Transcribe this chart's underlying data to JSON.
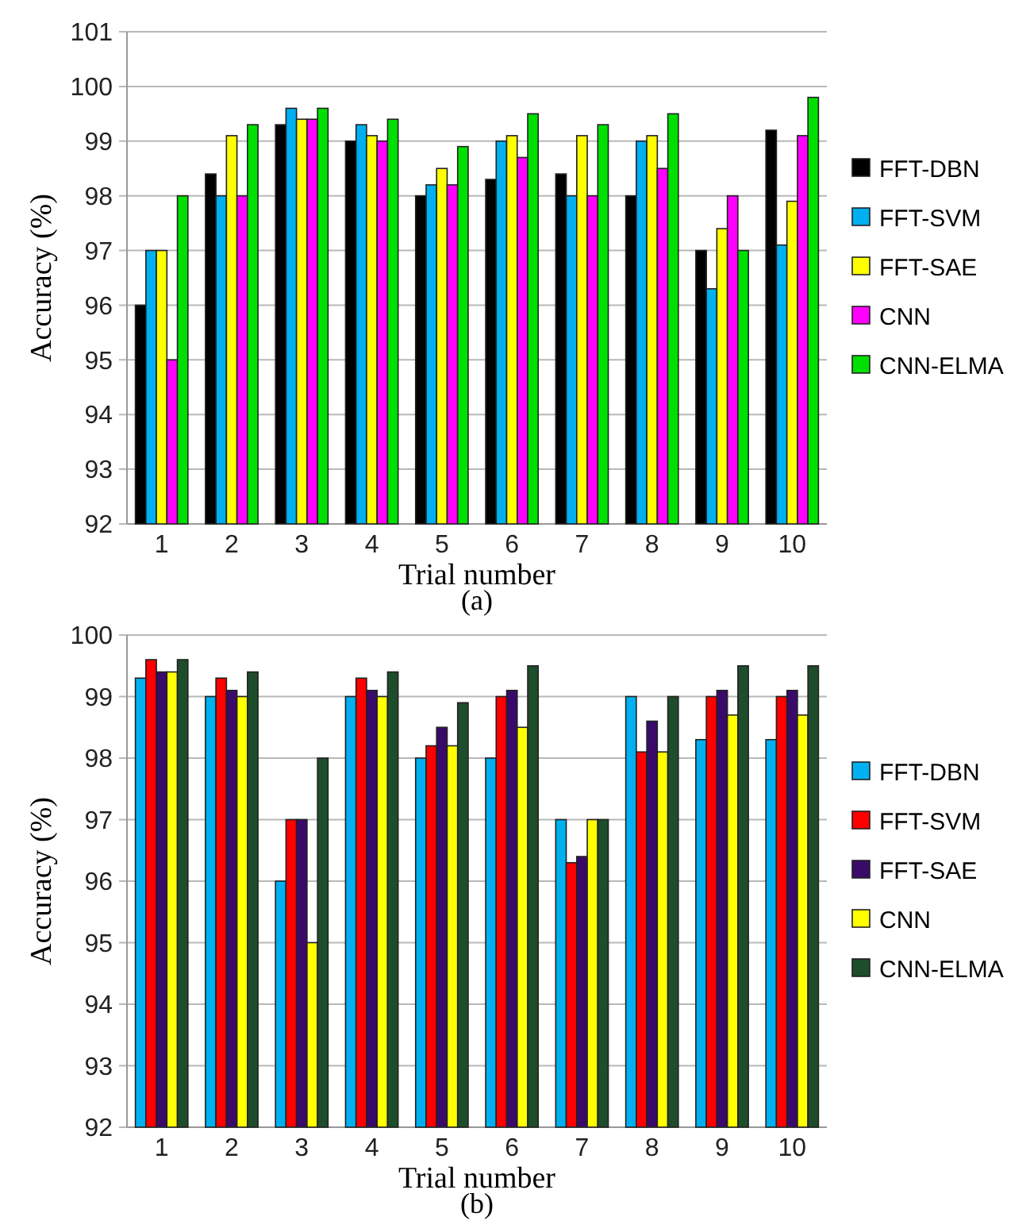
{
  "chart_data": [
    {
      "type": "bar",
      "xlabel": "Trial number",
      "ylabel": "Accuracy (%)",
      "categories": [
        "1",
        "2",
        "3",
        "4",
        "5",
        "6",
        "7",
        "8",
        "9",
        "10"
      ],
      "ylim": [
        92,
        101
      ],
      "yticks": [
        92,
        93,
        94,
        95,
        96,
        97,
        98,
        99,
        100,
        101
      ],
      "grid": "y",
      "legend": "right",
      "annotations": [
        "(a)"
      ],
      "series": [
        {
          "name": "FFT-DBN",
          "color": "#000000",
          "values": [
            96,
            98.4,
            99.3,
            99.0,
            98.0,
            98.3,
            98.4,
            98.0,
            97.0,
            99.2
          ]
        },
        {
          "name": "FFT-SVM",
          "color": "#00b0f0",
          "values": [
            97,
            98.0,
            99.6,
            99.3,
            98.2,
            99.0,
            98.0,
            99.0,
            96.3,
            97.1
          ]
        },
        {
          "name": "FFT-SAE",
          "color": "#ffff00",
          "values": [
            97,
            99.1,
            99.4,
            99.1,
            98.5,
            99.1,
            99.1,
            99.1,
            97.4,
            97.9
          ]
        },
        {
          "name": "CNN",
          "color": "#ff00ff",
          "values": [
            95,
            98.0,
            99.4,
            99.0,
            98.2,
            98.7,
            98.0,
            98.5,
            98.0,
            99.1
          ]
        },
        {
          "name": "CNN-ELMA",
          "color": "#00e000",
          "values": [
            98,
            99.3,
            99.6,
            99.4,
            98.9,
            99.5,
            99.3,
            99.5,
            97.0,
            99.8
          ]
        }
      ]
    },
    {
      "type": "bar",
      "xlabel": "Trial number",
      "ylabel": "Accuracy (%)",
      "categories": [
        "1",
        "2",
        "3",
        "4",
        "5",
        "6",
        "7",
        "8",
        "9",
        "10"
      ],
      "ylim": [
        92,
        100
      ],
      "yticks": [
        92,
        93,
        94,
        95,
        96,
        97,
        98,
        99,
        100
      ],
      "grid": "y",
      "legend": "right",
      "annotations": [
        "(b)"
      ],
      "series": [
        {
          "name": "FFT-DBN",
          "color": "#00b0f0",
          "values": [
            99.3,
            99.0,
            96.0,
            99.0,
            98.0,
            98.0,
            97.0,
            99.0,
            98.3,
            98.3
          ]
        },
        {
          "name": "FFT-SVM",
          "color": "#ff0000",
          "values": [
            99.6,
            99.3,
            97.0,
            99.3,
            98.2,
            99.0,
            96.3,
            98.1,
            99.0,
            99.0
          ]
        },
        {
          "name": "FFT-SAE",
          "color": "#3a0a6a",
          "values": [
            99.4,
            99.1,
            97.0,
            99.1,
            98.5,
            99.1,
            96.4,
            98.6,
            99.1,
            99.1
          ]
        },
        {
          "name": "CNN",
          "color": "#ffff00",
          "values": [
            99.4,
            99.0,
            95.0,
            99.0,
            98.2,
            98.5,
            97.0,
            98.1,
            98.7,
            98.7
          ]
        },
        {
          "name": "CNN-ELMA",
          "color": "#1e4d2b",
          "values": [
            99.6,
            99.4,
            98.0,
            99.4,
            98.9,
            99.5,
            97.0,
            99.0,
            99.5,
            99.5
          ]
        }
      ]
    }
  ]
}
